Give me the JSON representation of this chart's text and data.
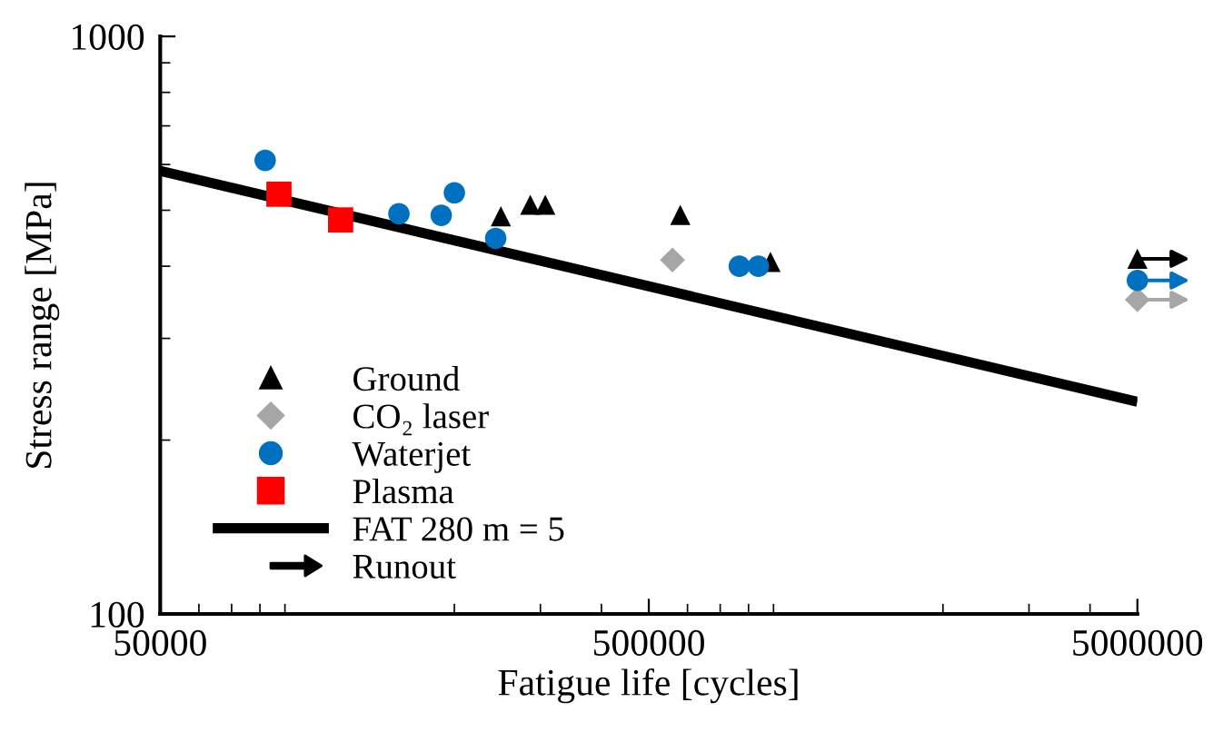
{
  "chart_data": {
    "type": "scatter",
    "xlabel": "Fatigue life [cycles]",
    "ylabel": "Stress range [MPa]",
    "log": "xy",
    "xlim": [
      50000,
      5000000
    ],
    "ylim": [
      100,
      1000
    ],
    "xticks": [
      50000,
      500000,
      5000000
    ],
    "yticks": [
      100,
      1000
    ],
    "grid": false,
    "legend": "bottom left",
    "series": [
      {
        "name": "Ground",
        "color": "#000000",
        "marker": "triangle",
        "x": [
          249000,
          286000,
          307000,
          580000,
          887000,
          5000000
        ],
        "values": [
          488,
          511,
          511,
          491,
          407,
          412
        ]
      },
      {
        "name": "CO₂ laser",
        "color": "#a6a6a6",
        "marker": "diamond",
        "x": [
          559000,
          5000000
        ],
        "values": [
          410,
          350
        ]
      },
      {
        "name": "Waterjet",
        "color": "#0070c0",
        "marker": "circle",
        "x": [
          82000,
          200000,
          154000,
          188000,
          243000,
          766000,
          838000,
          5000000
        ],
        "values": [
          610,
          536,
          493,
          490,
          447,
          400,
          400,
          378
        ]
      },
      {
        "name": "Plasma",
        "color": "#ff0000",
        "marker": "square",
        "x": [
          87500,
          117000
        ],
        "values": [
          533,
          481
        ]
      },
      {
        "name": "FAT 280 m = 5",
        "type": "line",
        "color": "#000000",
        "marker": "none",
        "line_style": "solid",
        "x": [
          50000,
          5000000
        ],
        "values": [
          585,
          233
        ]
      },
      {
        "name": "Runout",
        "type": "other",
        "color": "#000000"
      }
    ]
  }
}
